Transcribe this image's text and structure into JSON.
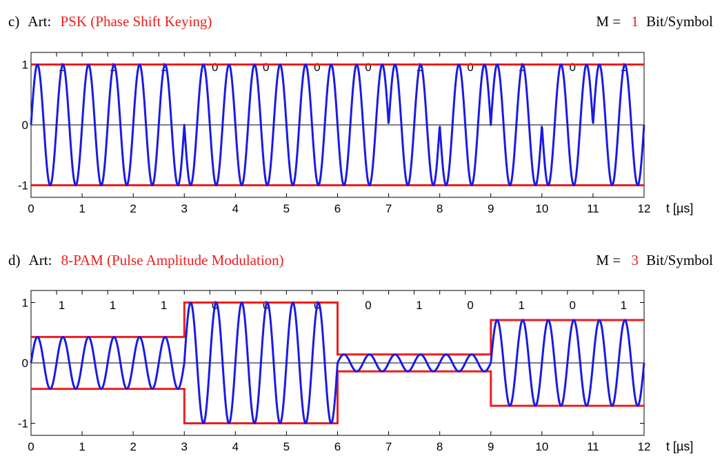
{
  "colors": {
    "signal": "#1a1ae6",
    "envelope": "#ee1c1c",
    "axis": "#000000",
    "red_text": "#ee1c1c"
  },
  "chart_data": [
    {
      "type": "line",
      "prefix": "c)",
      "title_label": "Art:",
      "title": "PSK (Phase Shift Keying)",
      "m_label": "M =",
      "m_value": "1",
      "m_unit": "Bit/Symbol",
      "xlabel": "t [µs]",
      "xlim": [
        0,
        12
      ],
      "ylim": [
        -1.2,
        1.2
      ],
      "x_ticks": [
        "0",
        "1",
        "2",
        "3",
        "4",
        "5",
        "6",
        "7",
        "8",
        "9",
        "10",
        "11",
        "12"
      ],
      "y_ticks": [
        {
          "value": 1,
          "label": "1"
        },
        {
          "value": 0,
          "label": "0"
        },
        {
          "value": -1,
          "label": "-1"
        }
      ],
      "bits": [
        "1",
        "1",
        "1",
        "0",
        "0",
        "0",
        "0",
        "1",
        "0",
        "1",
        "0",
        "1"
      ],
      "bit_duration": 1,
      "carrier_cycles_per_bit": 2,
      "series": [
        {
          "kind": "carrier",
          "symbol_duration": 1,
          "amplitudes": [
            1,
            1,
            1,
            -1,
            -1,
            -1,
            -1,
            1,
            -1,
            1,
            -1,
            1
          ]
        },
        {
          "kind": "envelope",
          "symbol_duration": 1,
          "amplitudes": [
            1,
            1,
            1,
            1,
            1,
            1,
            1,
            1,
            1,
            1,
            1,
            1
          ]
        }
      ]
    },
    {
      "type": "line",
      "prefix": "d)",
      "title_label": "Art:",
      "title": "8-PAM (Pulse Amplitude Modulation)",
      "m_label": "M =",
      "m_value": "3",
      "m_unit": "Bit/Symbol",
      "xlabel": "t [µs]",
      "xlim": [
        0,
        12
      ],
      "ylim": [
        -1.2,
        1.2
      ],
      "x_ticks": [
        "0",
        "1",
        "2",
        "3",
        "4",
        "5",
        "6",
        "7",
        "8",
        "9",
        "10",
        "11",
        "12"
      ],
      "y_ticks": [
        {
          "value": 1,
          "label": "1"
        },
        {
          "value": 0,
          "label": "0"
        },
        {
          "value": -1,
          "label": "-1"
        }
      ],
      "bits": [
        "1",
        "1",
        "1",
        "0",
        "0",
        "0",
        "0",
        "1",
        "0",
        "1",
        "0",
        "1"
      ],
      "bit_duration": 1,
      "carrier_cycles_per_bit": 2,
      "series": [
        {
          "kind": "carrier",
          "symbol_duration": 3,
          "amplitudes": [
            0.43,
            1.0,
            0.14,
            0.71
          ]
        },
        {
          "kind": "envelope",
          "symbol_duration": 3,
          "amplitudes": [
            0.43,
            1.0,
            0.14,
            0.71
          ]
        }
      ]
    }
  ]
}
